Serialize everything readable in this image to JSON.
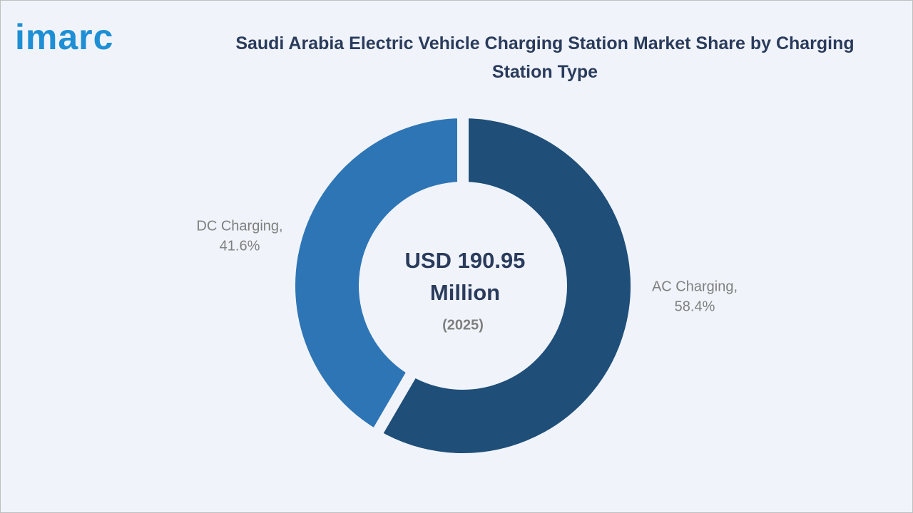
{
  "logo": "imarc",
  "chart_data": {
    "type": "pie",
    "title": "Saudi Arabia Electric Vehicle Charging Station Market Share by Charging Station Type",
    "categories": [
      "AC Charging,",
      "DC Charging,"
    ],
    "values": [
      58.4,
      41.6
    ],
    "value_labels": [
      "58.4%",
      "41.6%"
    ],
    "colors": [
      "#1f4e79",
      "#2e75b6"
    ],
    "center_label": [
      "USD 190.95",
      "Million"
    ],
    "center_sublabel": "(2025)"
  }
}
